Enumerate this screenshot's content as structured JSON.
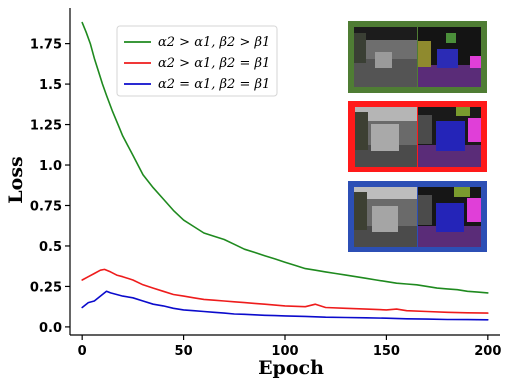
{
  "chart_data": {
    "type": "line",
    "xlabel": "Epoch",
    "ylabel": "Loss",
    "xlim": [
      -6,
      206
    ],
    "ylim": [
      -0.05,
      1.97
    ],
    "xticks": [
      0,
      50,
      100,
      150,
      200
    ],
    "yticks": [
      0.0,
      0.25,
      0.5,
      0.75,
      1.0,
      1.25,
      1.5,
      1.75
    ],
    "ytick_labels": [
      "0.0",
      "0.25",
      "0.5",
      "0.75",
      "1.0",
      "1.25",
      "1.5",
      "1.75"
    ],
    "grid": false,
    "legend_position": "upper-center",
    "series": [
      {
        "name": "α2 > α1, β2 > β1",
        "color": "#1f8a1f",
        "x": [
          0,
          2,
          4,
          6,
          8,
          10,
          12,
          15,
          18,
          20,
          25,
          30,
          35,
          40,
          45,
          50,
          55,
          60,
          65,
          70,
          75,
          80,
          85,
          90,
          95,
          100,
          105,
          110,
          115,
          120,
          125,
          130,
          135,
          140,
          145,
          150,
          155,
          160,
          165,
          170,
          175,
          180,
          185,
          190,
          195,
          200
        ],
        "y": [
          1.88,
          1.82,
          1.75,
          1.66,
          1.58,
          1.5,
          1.43,
          1.33,
          1.24,
          1.18,
          1.06,
          0.94,
          0.86,
          0.79,
          0.72,
          0.66,
          0.62,
          0.58,
          0.56,
          0.54,
          0.51,
          0.48,
          0.46,
          0.44,
          0.42,
          0.4,
          0.38,
          0.36,
          0.35,
          0.34,
          0.33,
          0.32,
          0.31,
          0.3,
          0.29,
          0.28,
          0.27,
          0.265,
          0.26,
          0.25,
          0.24,
          0.235,
          0.23,
          0.22,
          0.215,
          0.21
        ]
      },
      {
        "name": "α2 > α1, β2 = β1",
        "color": "#ee1c1c",
        "x": [
          0,
          3,
          6,
          9,
          11,
          14,
          17,
          20,
          25,
          30,
          35,
          40,
          45,
          50,
          55,
          60,
          65,
          70,
          75,
          80,
          85,
          90,
          95,
          100,
          110,
          115,
          120,
          130,
          140,
          150,
          155,
          160,
          170,
          180,
          190,
          200
        ],
        "y": [
          0.29,
          0.31,
          0.33,
          0.35,
          0.355,
          0.34,
          0.32,
          0.31,
          0.29,
          0.26,
          0.24,
          0.22,
          0.2,
          0.19,
          0.18,
          0.17,
          0.165,
          0.16,
          0.155,
          0.15,
          0.145,
          0.14,
          0.135,
          0.13,
          0.125,
          0.14,
          0.12,
          0.115,
          0.11,
          0.105,
          0.11,
          0.1,
          0.095,
          0.09,
          0.087,
          0.085
        ]
      },
      {
        "name": "α2 = α1, β2 = β1",
        "color": "#0b0bcc",
        "x": [
          0,
          3,
          6,
          9,
          12,
          14,
          17,
          20,
          25,
          30,
          35,
          40,
          45,
          50,
          55,
          60,
          65,
          70,
          75,
          80,
          85,
          90,
          95,
          100,
          110,
          120,
          130,
          140,
          150,
          160,
          170,
          180,
          190,
          200
        ],
        "y": [
          0.12,
          0.15,
          0.16,
          0.19,
          0.22,
          0.21,
          0.2,
          0.19,
          0.18,
          0.16,
          0.14,
          0.13,
          0.115,
          0.105,
          0.1,
          0.095,
          0.09,
          0.085,
          0.08,
          0.078,
          0.075,
          0.072,
          0.07,
          0.068,
          0.065,
          0.06,
          0.058,
          0.056,
          0.054,
          0.05,
          0.048,
          0.046,
          0.045,
          0.044
        ]
      }
    ],
    "inset_images": [
      {
        "border_color": "#4f7d34"
      },
      {
        "border_color": "#ff1a1a"
      },
      {
        "border_color": "#2c4fb5"
      }
    ]
  }
}
